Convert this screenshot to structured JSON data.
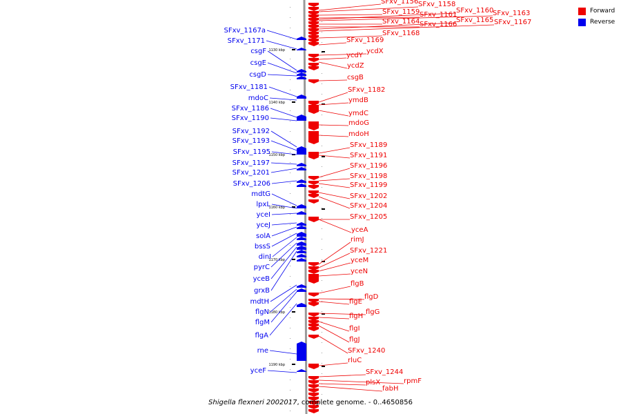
{
  "legend": {
    "forward_label": "Forward",
    "reverse_label": "Reverse",
    "forward_color": "#ee0000",
    "reverse_color": "#0000ee"
  },
  "caption": {
    "organism": "Shigella flexneri 2002017",
    "rest": ", complete genome. - 0..4650856"
  },
  "scale_ticks": [
    "1130 kbp",
    "1140 kbp",
    "1150 kbp",
    "1160 kbp",
    "1170 kbp",
    "1180 kbp",
    "1190 kbp"
  ],
  "forward_genes": [
    "SFxv_1156",
    "SFxv_1158",
    "SFxv_1159",
    "SFxv_1161",
    "SFxv_1160",
    "SFxv_1163",
    "SFxv_1164",
    "SFxv_1166",
    "SFxv_1165",
    "SFxv_1167",
    "SFxv_1168",
    "SFxv_1169",
    "ycdX",
    "ycdY",
    "ycdZ",
    "csgB",
    "SFxv_1182",
    "ymdB",
    "ymdC",
    "mdoG",
    "mdoH",
    "SFxv_1189",
    "SFxv_1191",
    "SFxv_1196",
    "SFxv_1198",
    "SFxv_1199",
    "SFxv_1202",
    "SFxv_1204",
    "SFxv_1205",
    "yceA",
    "rimJ",
    "SFxv_1221",
    "yceM",
    "yceN",
    "flgB",
    "flgD",
    "flgE",
    "flgG",
    "flgH",
    "flgI",
    "flgJ",
    "SFxv_1240",
    "rluC",
    "SFxv_1244",
    "rpmF",
    "plsX",
    "fabH"
  ],
  "reverse_genes": [
    "SFxv_1167a",
    "SFxv_1171",
    "csgF",
    "csgE",
    "csgD",
    "SFxv_1181",
    "mdoC",
    "SFxv_1186",
    "SFxv_1190",
    "SFxv_1192",
    "SFxv_1193",
    "SFxv_1195",
    "SFxv_1197",
    "SFxv_1201",
    "SFxv_1206",
    "mdtG",
    "lpxL",
    "yceI",
    "yceJ",
    "solA",
    "bssS",
    "dinI",
    "pyrC",
    "yceB",
    "grxB",
    "mdtH",
    "flgN",
    "flgM",
    "flgA",
    "rne",
    "yceF"
  ]
}
